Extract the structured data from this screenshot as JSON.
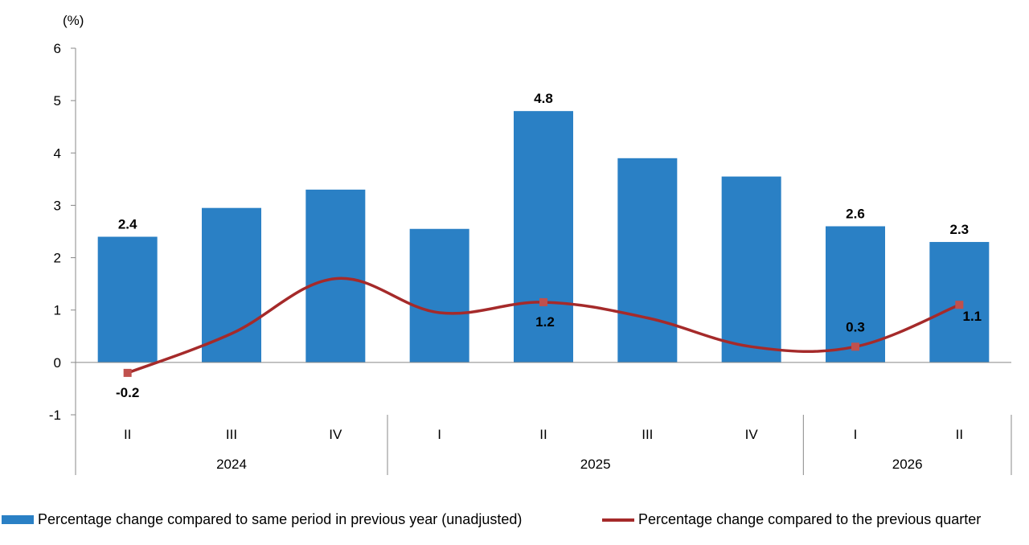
{
  "chart_data": {
    "type": "bar",
    "unit_label": "(%)",
    "categories": [
      "II",
      "III",
      "IV",
      "I",
      "II",
      "III",
      "IV",
      "I",
      "II"
    ],
    "year_groups": [
      {
        "label": "2024",
        "span": 3
      },
      {
        "label": "2025",
        "span": 4
      },
      {
        "label": "2026",
        "span": 2
      }
    ],
    "ylim": [
      -1,
      6
    ],
    "yticks": [
      -1,
      0,
      1,
      2,
      3,
      4,
      5,
      6
    ],
    "grid": false,
    "legend_position": "bottom",
    "series": [
      {
        "name": "Percentage change compared to same period in previous year (unadjusted)",
        "type": "bar",
        "color": "#2a80c5",
        "values": [
          2.4,
          2.95,
          3.3,
          2.55,
          4.8,
          3.9,
          3.55,
          2.6,
          2.3
        ],
        "labels": [
          "2.4",
          "",
          "",
          "",
          "4.8",
          "",
          "",
          "2.6",
          "2.3"
        ]
      },
      {
        "name": "Percentage change compared to the previous quarter",
        "type": "line",
        "color": "#a52a2a",
        "values": [
          -0.2,
          0.55,
          1.6,
          0.95,
          1.15,
          0.85,
          0.3,
          0.3,
          1.1
        ],
        "labels": [
          "-0.2",
          "",
          "",
          "",
          "1.2",
          "",
          "",
          "0.3",
          "1.1"
        ],
        "markers": [
          true,
          false,
          false,
          false,
          true,
          false,
          false,
          true,
          true
        ]
      }
    ]
  }
}
